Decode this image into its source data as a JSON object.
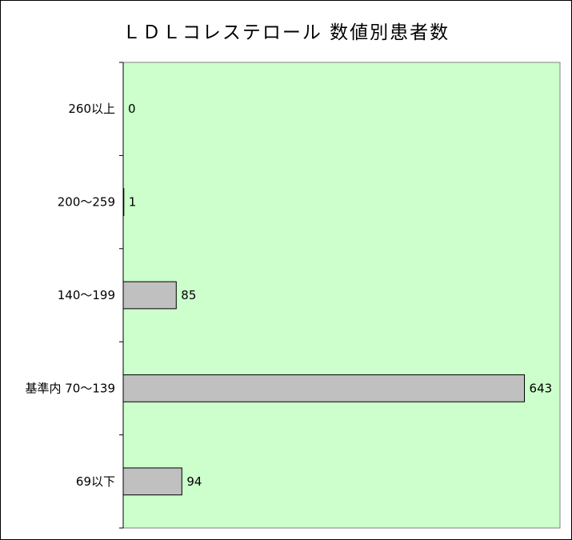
{
  "chart_data": {
    "type": "bar",
    "orientation": "horizontal",
    "title": "ＬＤＬコレステロール 数値別患者数",
    "categories": [
      "260以上",
      "200～259",
      "140～199",
      "基準内 70～139",
      "69以下"
    ],
    "values": [
      0,
      1,
      85,
      643,
      94
    ],
    "xlim": [
      0,
      700
    ],
    "grid": false,
    "legend": "none",
    "plot_background": "#ccffcc",
    "bar_color": "#c0c0c0",
    "bar_edge": "#000000",
    "data_labels": [
      "0",
      "1",
      "85",
      "643",
      "94"
    ]
  }
}
